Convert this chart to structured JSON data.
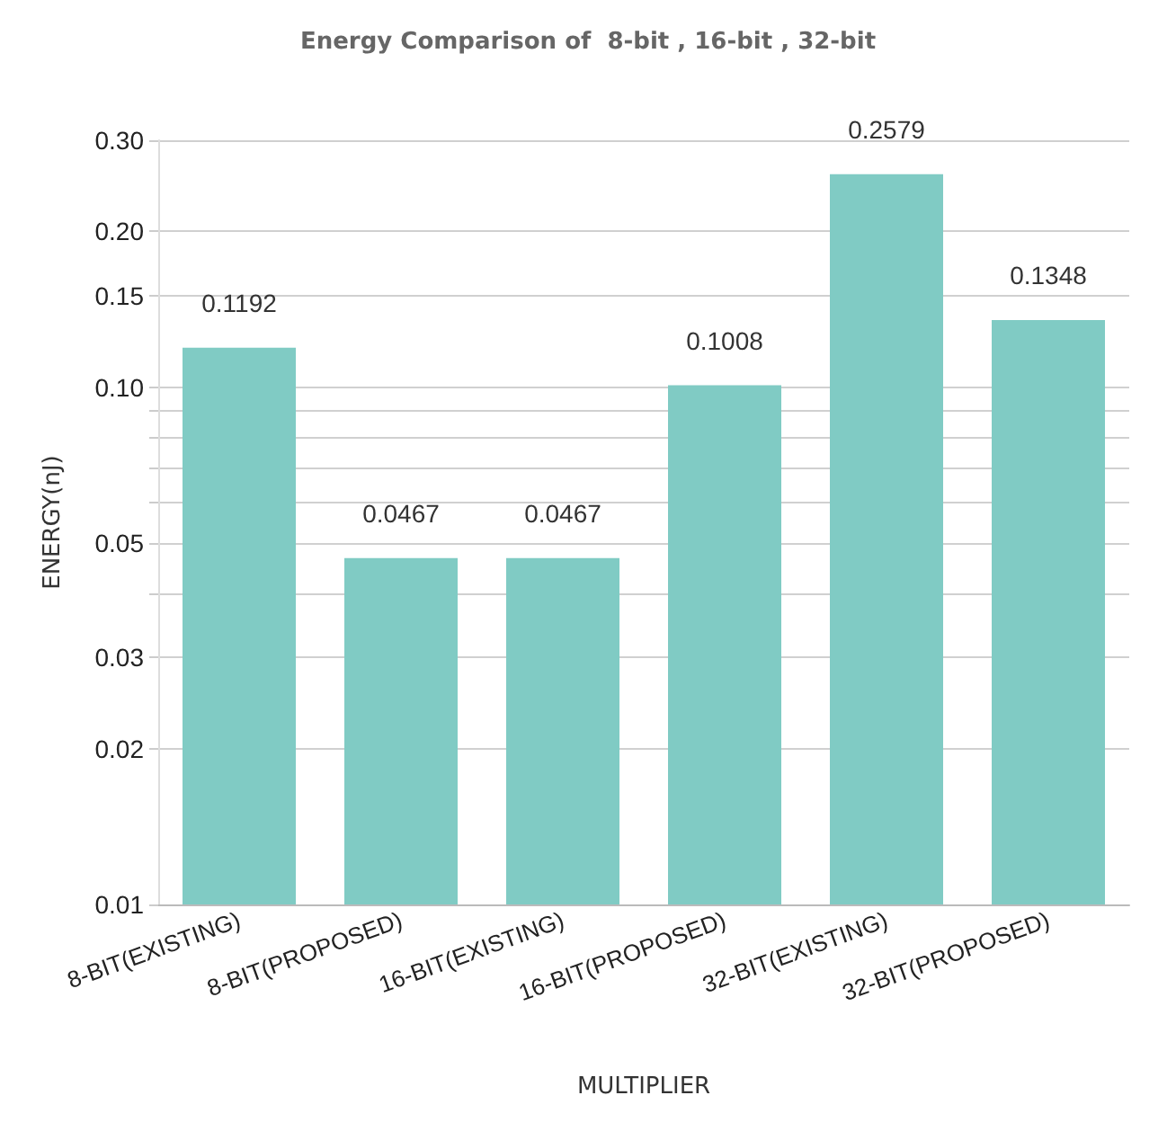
{
  "chart_data": {
    "type": "bar",
    "title": "Energy Comparison of  8-bit , 16-bit , 32-bit",
    "xlabel": "MULTIPLIER",
    "ylabel": "ENERGY(nJ)",
    "categories": [
      "8-BIT(EXISTING)",
      "8-BIT(PROPOSED)",
      "16-BIT(EXISTING)",
      "16-BIT(PROPOSED)",
      "32-BIT(EXISTING)",
      "32-BIT(PROPOSED)"
    ],
    "values": [
      0.1192,
      0.0467,
      0.0467,
      0.1008,
      0.2579,
      0.1348
    ],
    "color": "#80cbc4",
    "log": true,
    "ylim": [
      0.01,
      0.3
    ],
    "yticks": [
      0.01,
      0.02,
      0.03,
      {
        "value": 0.04,
        "label": null
      },
      0.05,
      {
        "value": 0.06,
        "label": null
      },
      {
        "value": 0.07,
        "label": null
      },
      {
        "value": 0.08,
        "label": null
      },
      {
        "value": 0.09,
        "label": null
      },
      {
        "value": 0.1,
        "label": "0.10"
      },
      0.15,
      {
        "value": 0.2,
        "label": "0.20"
      },
      {
        "value": 0.3,
        "label": "0.30"
      }
    ],
    "grid": "y",
    "data_labels": true
  }
}
